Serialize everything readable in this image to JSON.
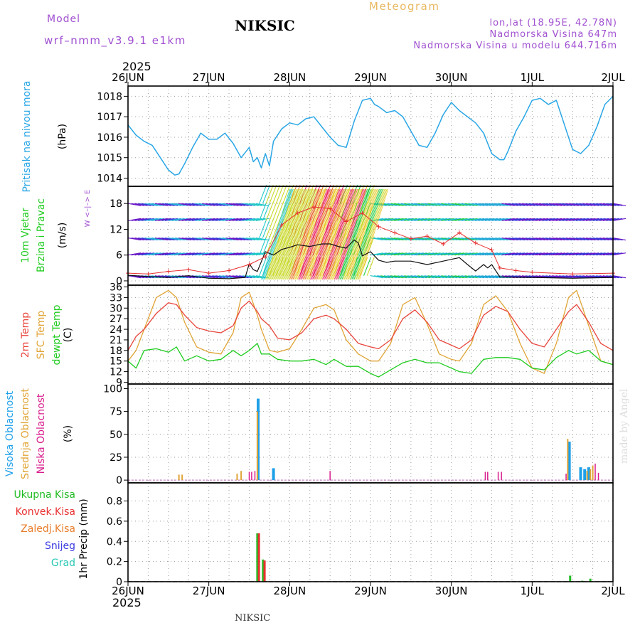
{
  "header": {
    "model_label": "Model",
    "model_name": "wrf–nmm_v3.9.1  e1km",
    "station_title": "NIKSIC",
    "meteogram_label": "Meteogram",
    "coords": "lon,lat (18.95E, 42.78N)",
    "altitude": "Nadmorska Visina 647m",
    "model_altitude": "Nadmorska Visina u modelu 644.716m",
    "year": "2025"
  },
  "footer": {
    "station": "NIKSIC",
    "year": "2025",
    "credit": "made by Angel"
  },
  "colors": {
    "pressure": "#29a6e6",
    "temp2m": "#e8463c",
    "sfc_temp": "#e0a436",
    "dewpt": "#1fcc1f",
    "high_cloud": "#1ea0e8",
    "mid_cloud": "#e0a436",
    "low_cloud": "#d81c8c",
    "total_precip": "#22bb22",
    "convective_precip": "#e83030",
    "frozen_precip": "#e87c28",
    "snow": "#3c3ce0",
    "hail": "#28c8b4",
    "wind_arrow": "#5a18c8",
    "wind_axis_label": "#a050d0"
  },
  "chart_data": [
    {
      "type": "line",
      "panel": "pressure",
      "ylabel": "Pritisak na nivou mora",
      "unit": "(hPa)",
      "ylim": [
        1013.6,
        1018.5
      ],
      "yticks": [
        "1014",
        "1015",
        "1016",
        "1017",
        "1018"
      ],
      "grid": true,
      "x_days": [
        "26JUN",
        "27JUN",
        "28JUN",
        "29JUN",
        "30JUN",
        "1JUL",
        "2JUL"
      ],
      "series": [
        {
          "name": "Pritisak na nivou mora",
          "x": [
            0,
            0.1,
            0.2,
            0.3,
            0.4,
            0.5,
            0.58,
            0.63,
            0.7,
            0.8,
            0.9,
            1.0,
            1.1,
            1.2,
            1.3,
            1.4,
            1.5,
            1.55,
            1.6,
            1.65,
            1.7,
            1.75,
            1.8,
            1.9,
            2.0,
            2.1,
            2.2,
            2.3,
            2.4,
            2.5,
            2.6,
            2.7,
            2.8,
            2.9,
            3.0,
            3.05,
            3.1,
            3.2,
            3.3,
            3.4,
            3.5,
            3.6,
            3.7,
            3.8,
            3.9,
            4.0,
            4.1,
            4.2,
            4.3,
            4.4,
            4.5,
            4.6,
            4.65,
            4.7,
            4.8,
            4.9,
            5.0,
            5.1,
            5.2,
            5.3,
            5.4,
            5.5,
            5.6,
            5.7,
            5.8,
            5.9,
            6.0
          ],
          "values": [
            1016.6,
            1016.1,
            1015.8,
            1015.6,
            1015.0,
            1014.4,
            1014.15,
            1014.2,
            1014.7,
            1015.5,
            1016.2,
            1015.9,
            1015.9,
            1016.2,
            1015.7,
            1015.0,
            1015.5,
            1014.8,
            1015.0,
            1014.5,
            1015.2,
            1014.6,
            1015.8,
            1016.4,
            1016.7,
            1016.6,
            1016.9,
            1017.0,
            1016.5,
            1016.0,
            1015.6,
            1015.5,
            1016.8,
            1017.8,
            1017.9,
            1017.6,
            1017.5,
            1017.2,
            1017.3,
            1017.0,
            1016.3,
            1015.6,
            1015.5,
            1016.2,
            1017.1,
            1017.7,
            1017.3,
            1017.0,
            1016.7,
            1016.2,
            1015.2,
            1014.9,
            1014.9,
            1015.3,
            1016.3,
            1017.0,
            1017.8,
            1017.9,
            1017.6,
            1017.8,
            1016.6,
            1015.4,
            1015.2,
            1015.6,
            1016.5,
            1017.6,
            1018.0
          ]
        }
      ]
    },
    {
      "type": "line",
      "panel": "wind",
      "ylabel": "10m Vjetar",
      "ylabel2": "Brzina i Pravac",
      "unit": "(m/s)",
      "direction_legend": "W <–|–> E",
      "ylim": [
        -1,
        22
      ],
      "yticks": [
        "0",
        "6",
        "12",
        "18"
      ],
      "grid": true,
      "series": [
        {
          "name": "Brzina",
          "x": [
            0.0,
            0.25,
            0.5,
            0.75,
            1.0,
            1.25,
            1.45,
            1.5,
            1.55,
            1.6,
            1.7,
            1.8,
            1.9,
            2.0,
            2.1,
            2.25,
            2.4,
            2.5,
            2.6,
            2.7,
            2.75,
            2.8,
            2.85,
            2.9,
            3.0,
            3.1,
            3.2,
            3.3,
            3.5,
            3.7,
            3.9,
            4.0,
            4.1,
            4.2,
            4.3,
            4.4,
            4.45,
            4.5,
            4.6,
            5.0,
            5.5,
            6.0
          ],
          "values": [
            1.3,
            1.0,
            0.8,
            1.2,
            0.6,
            0.5,
            0.8,
            4.0,
            2.6,
            2.2,
            6.8,
            6.0,
            7.3,
            7.8,
            8.4,
            8.0,
            8.6,
            8.6,
            8.0,
            7.6,
            8.6,
            9.5,
            8.8,
            5.8,
            6.8,
            4.8,
            4.3,
            4.6,
            4.6,
            3.8,
            4.6,
            5.0,
            5.4,
            3.8,
            2.3,
            3.8,
            3.0,
            3.8,
            0.9,
            0.8,
            0.6,
            0.8
          ]
        },
        {
          "name": "Udari",
          "x": [
            0.0,
            0.25,
            0.5,
            0.75,
            1.0,
            1.25,
            1.5,
            1.7,
            1.9,
            2.1,
            2.3,
            2.5,
            2.7,
            2.9,
            3.1,
            3.3,
            3.5,
            3.7,
            3.9,
            4.1,
            4.3,
            4.5,
            4.6,
            4.8,
            5.0,
            5.5,
            6.0
          ],
          "values": [
            1.8,
            1.6,
            2.2,
            2.6,
            1.8,
            2.4,
            3.8,
            5.6,
            13.0,
            15.8,
            17.2,
            16.8,
            13.8,
            15.8,
            12.6,
            11.2,
            9.8,
            10.4,
            8.6,
            11.2,
            8.8,
            7.2,
            3.0,
            2.4,
            2.0,
            1.6,
            1.8
          ]
        }
      ],
      "arrow_rows": [
        1.2,
        6.0,
        10.0,
        14.0,
        18.0
      ]
    },
    {
      "type": "line",
      "panel": "temperature",
      "ylabel": "2m Temp",
      "ylabel2": "SFC Temp",
      "ylabel3": "dewpt Temp",
      "unit": "(C)",
      "ylim": [
        8.5,
        36.5
      ],
      "yticks": [
        "9",
        "12",
        "15",
        "18",
        "21",
        "24",
        "27",
        "30",
        "33",
        "36"
      ],
      "grid": true,
      "series": [
        {
          "name": "2m Temp",
          "x": [
            0,
            0.1,
            0.2,
            0.35,
            0.5,
            0.6,
            0.7,
            0.85,
            1.0,
            1.15,
            1.3,
            1.4,
            1.5,
            1.6,
            1.65,
            1.75,
            1.85,
            2.0,
            2.15,
            2.3,
            2.45,
            2.55,
            2.7,
            2.85,
            3.0,
            3.1,
            3.25,
            3.4,
            3.55,
            3.7,
            3.85,
            4.0,
            4.1,
            4.25,
            4.4,
            4.55,
            4.7,
            4.85,
            5.0,
            5.15,
            5.3,
            5.45,
            5.55,
            5.7,
            5.85,
            6.0
          ],
          "values": [
            18,
            22,
            24,
            28.5,
            31.5,
            31,
            28,
            24.5,
            23.5,
            23,
            25,
            30,
            32,
            29,
            27,
            25,
            21.5,
            21,
            23,
            27,
            28,
            27,
            24,
            20,
            19,
            18.5,
            21,
            27,
            29.5,
            26,
            21,
            19.5,
            18.5,
            21,
            28,
            30.5,
            29,
            24,
            20,
            19,
            24,
            29,
            31,
            26,
            20,
            18
          ]
        },
        {
          "name": "SFC Temp",
          "x": [
            0,
            0.1,
            0.2,
            0.35,
            0.5,
            0.6,
            0.7,
            0.85,
            1.0,
            1.15,
            1.3,
            1.4,
            1.5,
            1.6,
            1.65,
            1.75,
            1.85,
            2.0,
            2.15,
            2.3,
            2.45,
            2.55,
            2.7,
            2.85,
            3.0,
            3.1,
            3.25,
            3.4,
            3.55,
            3.7,
            3.85,
            4.0,
            4.1,
            4.25,
            4.4,
            4.55,
            4.7,
            4.85,
            5.0,
            5.15,
            5.3,
            5.45,
            5.55,
            5.7,
            5.85,
            6.0
          ],
          "values": [
            15,
            18,
            24,
            33,
            35,
            33,
            26,
            19,
            17.5,
            17,
            23,
            33,
            34.5,
            28,
            24,
            18,
            17.5,
            18.5,
            24,
            30,
            31,
            29.5,
            21,
            17,
            15,
            15,
            20,
            31,
            33,
            25.5,
            17,
            15.5,
            15,
            20,
            31,
            33.5,
            29,
            20,
            13,
            11.5,
            20,
            33,
            35,
            25,
            15,
            14
          ]
        },
        {
          "name": "dewpt Temp",
          "x": [
            0,
            0.1,
            0.2,
            0.35,
            0.5,
            0.6,
            0.7,
            0.85,
            1.0,
            1.15,
            1.3,
            1.4,
            1.5,
            1.6,
            1.65,
            1.75,
            1.85,
            2.0,
            2.15,
            2.3,
            2.45,
            2.55,
            2.7,
            2.85,
            3.0,
            3.1,
            3.25,
            3.4,
            3.55,
            3.7,
            3.85,
            4.0,
            4.1,
            4.25,
            4.4,
            4.55,
            4.7,
            4.85,
            5.0,
            5.15,
            5.3,
            5.45,
            5.55,
            5.7,
            5.85,
            6.0
          ],
          "values": [
            15,
            13,
            18,
            18.5,
            17.5,
            19,
            15,
            16.5,
            15,
            15.5,
            18,
            16.5,
            18,
            20,
            17,
            17,
            15.5,
            15,
            15,
            15.5,
            14,
            15.5,
            13.5,
            13.5,
            11.5,
            10.5,
            12.5,
            14.5,
            15.5,
            14.5,
            14.5,
            13,
            12,
            11.5,
            15.5,
            16,
            16,
            15.5,
            13,
            12.5,
            16,
            18,
            17,
            18,
            15,
            14
          ]
        }
      ]
    },
    {
      "type": "bar",
      "panel": "cloud",
      "ylabel": "Visoka Oblacnost",
      "ylabel2": "Srednja Oblacnost",
      "ylabel3": "Niska Oblacnost",
      "unit": "(%)",
      "ylim": [
        -3,
        105
      ],
      "yticks": [
        "0",
        "25",
        "50",
        "75",
        "100"
      ],
      "grid": true,
      "series": [
        {
          "name": "Visoka Oblacnost",
          "x": [
            1.61,
            1.8,
            5.46,
            5.6,
            5.65,
            5.7
          ],
          "values": [
            89,
            13,
            42,
            14,
            12,
            14
          ]
        },
        {
          "name": "Srednja Oblacnost",
          "x": [
            0.63,
            0.67,
            1.35,
            1.4,
            1.6,
            5.44,
            5.68,
            5.72,
            5.75
          ],
          "values": [
            6,
            6,
            7,
            10,
            75,
            45,
            10,
            12,
            16
          ]
        },
        {
          "name": "Niska Oblacnost",
          "x": [
            1.5,
            1.53,
            1.57,
            2.5,
            4.42,
            4.45,
            4.58,
            4.62,
            5.42,
            5.78,
            5.82
          ],
          "values": [
            9,
            9,
            10,
            10,
            9,
            9,
            9,
            9,
            7,
            18,
            8
          ]
        }
      ]
    },
    {
      "type": "bar",
      "panel": "precip",
      "ylabel": "1hr Precip",
      "unit": "(mm)",
      "legend": [
        "Ukupna Kisa",
        "Konvek.Kisa",
        "Zaledj.Kisa",
        "Snijeg",
        "Grad"
      ],
      "ylim": [
        0,
        0.98
      ],
      "yticks": [
        "0",
        "0.2",
        "0.4",
        "0.6",
        "0.8"
      ],
      "grid": true,
      "series": [
        {
          "name": "Ukupna Kisa",
          "x": [
            1.6,
            1.67,
            5.47,
            5.62,
            5.72
          ],
          "values": [
            0.48,
            0.22,
            0.06,
            0.01,
            0.03
          ]
        },
        {
          "name": "Konvek.Kisa",
          "x": [
            1.62,
            1.69
          ],
          "values": [
            0.48,
            0.21
          ]
        }
      ]
    }
  ]
}
